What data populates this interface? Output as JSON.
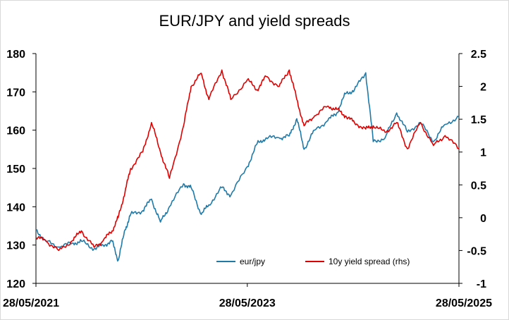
{
  "chart_data": {
    "type": "line",
    "title": "EUR/JPY and yield spreads",
    "x_tick_labels": [
      "28/05/2021",
      "28/05/2023",
      "28/05/2025"
    ],
    "x_range": [
      "2021-05-28",
      "2025-05-28"
    ],
    "y_left": {
      "min": 120,
      "max": 180,
      "ticks": [
        "120",
        "130",
        "140",
        "150",
        "160",
        "170",
        "180"
      ]
    },
    "y_right": {
      "min": -1,
      "max": 2.5,
      "ticks": [
        "-1",
        "-0.5",
        "0",
        "0.5",
        "1",
        "1.5",
        "2",
        "2.5"
      ]
    },
    "grid": false,
    "legend_position": "bottom-right",
    "series": [
      {
        "name": "eur/jpy",
        "axis": "left",
        "color": "#1f7aa8",
        "points": [
          [
            "2021-05-28",
            134.0
          ],
          [
            "2021-07-01",
            131.0
          ],
          [
            "2021-08-15",
            129.5
          ],
          [
            "2021-10-01",
            130.5
          ],
          [
            "2021-11-01",
            131.0
          ],
          [
            "2021-12-15",
            129.0
          ],
          [
            "2022-01-15",
            130.0
          ],
          [
            "2022-02-15",
            131.0
          ],
          [
            "2022-03-08",
            126.0
          ],
          [
            "2022-04-01",
            134.0
          ],
          [
            "2022-04-20",
            138.0
          ],
          [
            "2022-06-01",
            139.0
          ],
          [
            "2022-07-01",
            142.0
          ],
          [
            "2022-08-01",
            136.0
          ],
          [
            "2022-09-01",
            140.0
          ],
          [
            "2022-10-20",
            146.0
          ],
          [
            "2022-11-15",
            145.0
          ],
          [
            "2022-12-20",
            138.0
          ],
          [
            "2023-01-15",
            140.5
          ],
          [
            "2023-03-01",
            145.0
          ],
          [
            "2023-04-01",
            143.0
          ],
          [
            "2023-05-28",
            150.5
          ],
          [
            "2023-07-01",
            156.5
          ],
          [
            "2023-08-01",
            158.0
          ],
          [
            "2023-09-15",
            158.0
          ],
          [
            "2023-10-20",
            158.5
          ],
          [
            "2023-11-15",
            163.0
          ],
          [
            "2023-12-10",
            155.0
          ],
          [
            "2024-01-15",
            160.0
          ],
          [
            "2024-03-01",
            162.5
          ],
          [
            "2024-04-01",
            164.5
          ],
          [
            "2024-05-01",
            169.5
          ],
          [
            "2024-06-01",
            170.5
          ],
          [
            "2024-07-10",
            175.0
          ],
          [
            "2024-08-05",
            157.0
          ],
          [
            "2024-09-15",
            158.0
          ],
          [
            "2024-10-25",
            164.5
          ],
          [
            "2024-12-01",
            159.5
          ],
          [
            "2025-01-15",
            162.0
          ],
          [
            "2025-03-01",
            157.0
          ],
          [
            "2025-04-10",
            161.5
          ],
          [
            "2025-05-28",
            163.5
          ]
        ]
      },
      {
        "name": "10y yield spread (rhs)",
        "axis": "right",
        "color": "#e00000",
        "points": [
          [
            "2021-05-28",
            -0.3
          ],
          [
            "2021-07-01",
            -0.35
          ],
          [
            "2021-08-15",
            -0.5
          ],
          [
            "2021-10-01",
            -0.35
          ],
          [
            "2021-11-01",
            -0.2
          ],
          [
            "2021-12-15",
            -0.45
          ],
          [
            "2022-01-15",
            -0.35
          ],
          [
            "2022-02-15",
            -0.2
          ],
          [
            "2022-03-08",
            0.0
          ],
          [
            "2022-04-01",
            0.4
          ],
          [
            "2022-04-20",
            0.75
          ],
          [
            "2022-06-01",
            1.0
          ],
          [
            "2022-07-01",
            1.45
          ],
          [
            "2022-08-01",
            1.0
          ],
          [
            "2022-09-01",
            0.6
          ],
          [
            "2022-10-20",
            1.4
          ],
          [
            "2022-11-15",
            2.0
          ],
          [
            "2022-12-20",
            2.2
          ],
          [
            "2023-01-15",
            1.8
          ],
          [
            "2023-03-01",
            2.25
          ],
          [
            "2023-04-01",
            1.8
          ],
          [
            "2023-05-28",
            2.1
          ],
          [
            "2023-07-01",
            1.95
          ],
          [
            "2023-08-01",
            2.15
          ],
          [
            "2023-09-15",
            2.0
          ],
          [
            "2023-10-20",
            2.25
          ],
          [
            "2023-11-15",
            1.8
          ],
          [
            "2023-12-10",
            1.4
          ],
          [
            "2024-01-15",
            1.55
          ],
          [
            "2024-03-01",
            1.7
          ],
          [
            "2024-04-01",
            1.65
          ],
          [
            "2024-05-01",
            1.55
          ],
          [
            "2024-06-01",
            1.45
          ],
          [
            "2024-07-10",
            1.35
          ],
          [
            "2024-08-05",
            1.4
          ],
          [
            "2024-09-15",
            1.3
          ],
          [
            "2024-10-25",
            1.45
          ],
          [
            "2024-12-01",
            1.05
          ],
          [
            "2025-01-15",
            1.45
          ],
          [
            "2025-03-01",
            1.1
          ],
          [
            "2025-04-10",
            1.25
          ],
          [
            "2025-05-28",
            1.05
          ]
        ]
      }
    ]
  }
}
